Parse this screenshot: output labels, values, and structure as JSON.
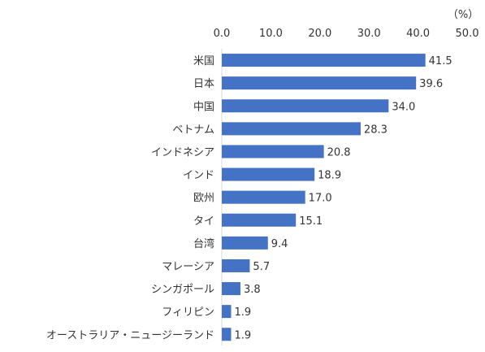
{
  "chart_data": {
    "type": "bar",
    "orientation": "horizontal",
    "unit": "（%）",
    "categories": [
      "米国",
      "日本",
      "中国",
      "ベトナム",
      "インドネシア",
      "インド",
      "欧州",
      "タイ",
      "台湾",
      "マレーシア",
      "シンガポール",
      "フィリピン",
      "オーストラリア・ニュージーランド"
    ],
    "values": [
      41.5,
      39.6,
      34.0,
      28.3,
      20.8,
      18.9,
      17.0,
      15.1,
      9.4,
      5.7,
      3.8,
      1.9,
      1.9
    ],
    "value_labels": [
      "41.5",
      "39.6",
      "34.0",
      "28.3",
      "20.8",
      "18.9",
      "17.0",
      "15.1",
      "9.4",
      "5.7",
      "3.8",
      "1.9",
      "1.9"
    ],
    "xlim": [
      0,
      50
    ],
    "ticks": [
      0,
      10,
      20,
      30,
      40,
      50
    ],
    "tick_labels": [
      "0.0",
      "10.0",
      "20.0",
      "30.0",
      "40.0",
      "50.0"
    ],
    "axis_position": "top",
    "grid": false,
    "bar_color": "#4472C4"
  }
}
